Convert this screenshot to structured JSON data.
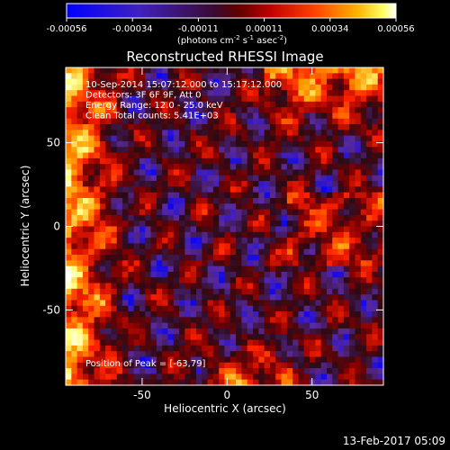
{
  "colorbar": {
    "ticks": [
      "-0.00056",
      "-0.00034",
      "-0.00011",
      "0.00011",
      "0.00034",
      "0.00056"
    ],
    "units_html": "(photons cm<tspan baseline-shift=\"super\" font-size=\"7\">-2</tspan> s<tspan baseline-shift=\"super\" font-size=\"7\">-1</tspan> asec<tspan baseline-shift=\"super\" font-size=\"7\">-2</tspan>)"
  },
  "chart_data": {
    "type": "heatmap",
    "title": "Reconstructed RHESSI Image",
    "xlabel": "Heliocentric X (arcsec)",
    "ylabel": "Heliocentric Y (arcsec)",
    "xlim": [
      -95,
      92
    ],
    "ylim": [
      -95,
      95
    ],
    "x_ticks": [
      "-50",
      "0",
      "50"
    ],
    "x_tick_values": [
      -50,
      0,
      50
    ],
    "y_ticks": [
      "50",
      "0",
      "-50"
    ],
    "y_tick_values": [
      50,
      0,
      -50
    ],
    "color_range": [
      -0.00056,
      0.00056
    ],
    "colormap": [
      "#0000ff",
      "#5a2aa0",
      "#2b0a14",
      "#8a0000",
      "#ff2000",
      "#ff9a00",
      "#ffff80",
      "#ffffff"
    ],
    "info_lines": [
      "10-Sep-2014 15:07:12.000 to 15:17:12.000",
      "Detectors: 3F 6F 9F, Att 0",
      "Energy Range: 12.0 - 25.0 keV",
      "Clean     Total counts: 5.41E+03"
    ],
    "peak_label": "Position of Peak = [-63,79]",
    "peak_position": [
      -63,
      79
    ]
  },
  "timestamp": "13-Feb-2017 05:09"
}
